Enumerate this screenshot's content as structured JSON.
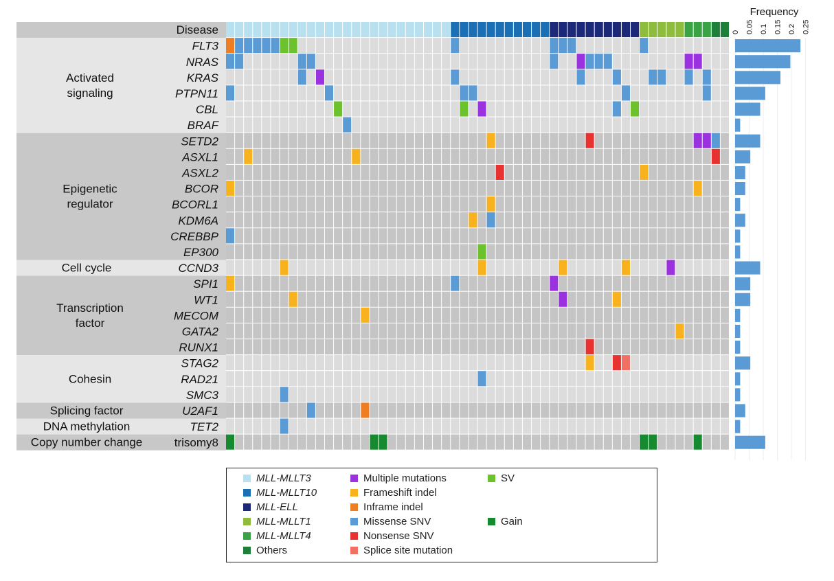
{
  "chart_data": {
    "type": "heatmap",
    "title": "",
    "n_samples": 56,
    "disease_row": {
      "label": "Disease",
      "groups": [
        {
          "key": "MLLT3",
          "count": 25
        },
        {
          "key": "MLLT10",
          "count": 11
        },
        {
          "key": "ELL",
          "count": 10
        },
        {
          "key": "MLLT1",
          "count": 5
        },
        {
          "key": "MLLT4",
          "count": 3
        },
        {
          "key": "Others",
          "count": 2
        }
      ]
    },
    "categories": [
      {
        "name": "Activated\nsignaling",
        "genes": [
          "FLT3",
          "NRAS",
          "KRAS",
          "PTPN11",
          "CBL",
          "BRAF"
        ],
        "shade": "light"
      },
      {
        "name": "Epigenetic\nregulator",
        "genes": [
          "SETD2",
          "ASXL1",
          "ASXL2",
          "BCOR",
          "BCORL1",
          "KDM6A",
          "CREBBP",
          "EP300"
        ],
        "shade": "dark"
      },
      {
        "name": "Cell cycle",
        "genes": [
          "CCND3"
        ],
        "shade": "light"
      },
      {
        "name": "Transcription\nfactor",
        "genes": [
          "SPI1",
          "WT1",
          "MECOM",
          "GATA2",
          "RUNX1"
        ],
        "shade": "dark"
      },
      {
        "name": "Cohesin",
        "genes": [
          "STAG2",
          "RAD21",
          "SMC3"
        ],
        "shade": "light"
      },
      {
        "name": "Splicing factor",
        "genes": [
          "U2AF1"
        ],
        "shade": "dark"
      },
      {
        "name": "DNA methylation",
        "genes": [
          "TET2"
        ],
        "shade": "light"
      },
      {
        "name": "Copy number change",
        "genes": [
          "trisomy8"
        ],
        "shade": "dark"
      }
    ],
    "italic_genes": [
      "FLT3",
      "NRAS",
      "KRAS",
      "PTPN11",
      "CBL",
      "BRAF",
      "SETD2",
      "ASXL1",
      "ASXL2",
      "BCOR",
      "BCORL1",
      "KDM6A",
      "CREBBP",
      "EP300",
      "CCND3",
      "SPI1",
      "WT1",
      "MECOM",
      "GATA2",
      "RUNX1",
      "STAG2",
      "RAD21",
      "SMC3",
      "U2AF1",
      "TET2"
    ],
    "mutations": {
      "FLT3": [
        [
          0,
          "inframe"
        ],
        [
          1,
          "missense"
        ],
        [
          2,
          "missense"
        ],
        [
          3,
          "missense"
        ],
        [
          4,
          "missense"
        ],
        [
          5,
          "missense"
        ],
        [
          6,
          "sv"
        ],
        [
          7,
          "sv"
        ],
        [
          25,
          "missense"
        ],
        [
          36,
          "missense"
        ],
        [
          37,
          "missense"
        ],
        [
          38,
          "missense"
        ],
        [
          46,
          "missense"
        ]
      ],
      "NRAS": [
        [
          0,
          "missense"
        ],
        [
          1,
          "missense"
        ],
        [
          8,
          "missense"
        ],
        [
          9,
          "missense"
        ],
        [
          36,
          "missense"
        ],
        [
          39,
          "multiple"
        ],
        [
          40,
          "missense"
        ],
        [
          41,
          "missense"
        ],
        [
          42,
          "missense"
        ],
        [
          51,
          "multiple"
        ],
        [
          52,
          "multiple"
        ]
      ],
      "KRAS": [
        [
          8,
          "missense"
        ],
        [
          10,
          "multiple"
        ],
        [
          25,
          "missense"
        ],
        [
          39,
          "missense"
        ],
        [
          43,
          "missense"
        ],
        [
          47,
          "missense"
        ],
        [
          48,
          "missense"
        ],
        [
          51,
          "missense"
        ],
        [
          53,
          "missense"
        ]
      ],
      "PTPN11": [
        [
          0,
          "missense"
        ],
        [
          11,
          "missense"
        ],
        [
          26,
          "missense"
        ],
        [
          27,
          "missense"
        ],
        [
          44,
          "missense"
        ],
        [
          53,
          "missense"
        ]
      ],
      "CBL": [
        [
          12,
          "sv"
        ],
        [
          26,
          "sv"
        ],
        [
          28,
          "multiple"
        ],
        [
          43,
          "missense"
        ],
        [
          45,
          "sv"
        ]
      ],
      "BRAF": [
        [
          13,
          "missense"
        ]
      ],
      "SETD2": [
        [
          29,
          "frameshift"
        ],
        [
          40,
          "nonsense"
        ],
        [
          52,
          "multiple"
        ],
        [
          53,
          "multiple"
        ],
        [
          54,
          "missense"
        ]
      ],
      "ASXL1": [
        [
          2,
          "frameshift"
        ],
        [
          14,
          "frameshift"
        ],
        [
          54,
          "nonsense"
        ]
      ],
      "ASXL2": [
        [
          30,
          "nonsense"
        ],
        [
          46,
          "frameshift"
        ]
      ],
      "BCOR": [
        [
          0,
          "frameshift"
        ],
        [
          52,
          "frameshift"
        ]
      ],
      "BCORL1": [
        [
          29,
          "frameshift"
        ]
      ],
      "KDM6A": [
        [
          27,
          "frameshift"
        ],
        [
          29,
          "missense"
        ]
      ],
      "CREBBP": [
        [
          0,
          "missense"
        ]
      ],
      "EP300": [
        [
          28,
          "sv"
        ]
      ],
      "CCND3": [
        [
          6,
          "frameshift"
        ],
        [
          28,
          "frameshift"
        ],
        [
          37,
          "frameshift"
        ],
        [
          44,
          "frameshift"
        ],
        [
          49,
          "multiple"
        ]
      ],
      "SPI1": [
        [
          0,
          "frameshift"
        ],
        [
          25,
          "missense"
        ],
        [
          36,
          "multiple"
        ]
      ],
      "WT1": [
        [
          7,
          "frameshift"
        ],
        [
          37,
          "multiple"
        ],
        [
          43,
          "frameshift"
        ]
      ],
      "MECOM": [
        [
          15,
          "frameshift"
        ]
      ],
      "GATA2": [
        [
          50,
          "frameshift"
        ]
      ],
      "RUNX1": [
        [
          40,
          "nonsense"
        ]
      ],
      "STAG2": [
        [
          40,
          "frameshift"
        ],
        [
          43,
          "nonsense"
        ],
        [
          44,
          "splice"
        ]
      ],
      "RAD21": [
        [
          28,
          "missense"
        ]
      ],
      "SMC3": [
        [
          6,
          "missense"
        ]
      ],
      "U2AF1": [
        [
          9,
          "missense"
        ],
        [
          15,
          "inframe"
        ]
      ],
      "TET2": [
        [
          6,
          "missense"
        ]
      ],
      "trisomy8": [
        [
          0,
          "gain"
        ],
        [
          16,
          "gain"
        ],
        [
          17,
          "gain"
        ],
        [
          46,
          "gain"
        ],
        [
          47,
          "gain"
        ],
        [
          52,
          "gain"
        ]
      ]
    },
    "frequency": {
      "title": "Frequency",
      "ticks": [
        "0",
        "0.05",
        "0.1",
        "0.15",
        "0.2",
        "0.25"
      ],
      "range": [
        0,
        0.25
      ],
      "values": [
        0.232,
        0.196,
        0.161,
        0.107,
        0.089,
        0.018,
        0.089,
        0.054,
        0.036,
        0.036,
        0.018,
        0.036,
        0.018,
        0.018,
        0.089,
        0.054,
        0.054,
        0.018,
        0.018,
        0.018,
        0.054,
        0.018,
        0.018,
        0.036,
        0.018,
        0.107
      ]
    },
    "colors": {
      "MLLT3": "#b9e0ef",
      "MLLT10": "#1a6fb5",
      "ELL": "#1c2878",
      "MLLT1": "#8ebd3e",
      "MLLT4": "#3aa346",
      "Others": "#1d7f3a",
      "multiple": "#9b32e0",
      "frameshift": "#f7b21d",
      "inframe": "#ef7d22",
      "missense": "#5b9bd5",
      "nonsense": "#e8322f",
      "splice": "#f07063",
      "sv": "#6cc22c",
      "gain": "#158a2f",
      "cell_light": "#dcdcdc",
      "cell_dark": "#c5c5c5",
      "panel_light": "#e6e6e6",
      "panel_dark": "#c8c8c8",
      "freq_bar": "#5b9bd5"
    },
    "legend": {
      "columns": [
        [
          {
            "key": "MLLT3",
            "label": "MLL-MLLT3",
            "italic": true
          },
          {
            "key": "MLLT10",
            "label": "MLL-MLLT10",
            "italic": true
          },
          {
            "key": "ELL",
            "label": "MLL-ELL",
            "italic": true
          },
          {
            "key": "MLLT1",
            "label": "MLL-MLLT1",
            "italic": true
          },
          {
            "key": "MLLT4",
            "label": "MLL-MLLT4",
            "italic": true
          },
          {
            "key": "Others",
            "label": "Others",
            "italic": false
          }
        ],
        [
          {
            "key": "multiple",
            "label": "Multiple mutations",
            "italic": false
          },
          {
            "key": "frameshift",
            "label": "Frameshift indel",
            "italic": false
          },
          {
            "key": "inframe",
            "label": "Inframe indel",
            "italic": false
          },
          {
            "key": "missense",
            "label": "Missense SNV",
            "italic": false
          },
          {
            "key": "nonsense",
            "label": "Nonsense SNV",
            "italic": false
          },
          {
            "key": "splice",
            "label": "Splice site mutation",
            "italic": false
          }
        ],
        [
          {
            "key": "sv",
            "label": "SV",
            "italic": false
          },
          {
            "key": "",
            "label": "",
            "italic": false
          },
          {
            "key": "",
            "label": "",
            "italic": false
          },
          {
            "key": "gain",
            "label": "Gain",
            "italic": false
          },
          {
            "key": "",
            "label": "",
            "italic": false
          },
          {
            "key": "",
            "label": "",
            "italic": false
          }
        ]
      ]
    }
  }
}
